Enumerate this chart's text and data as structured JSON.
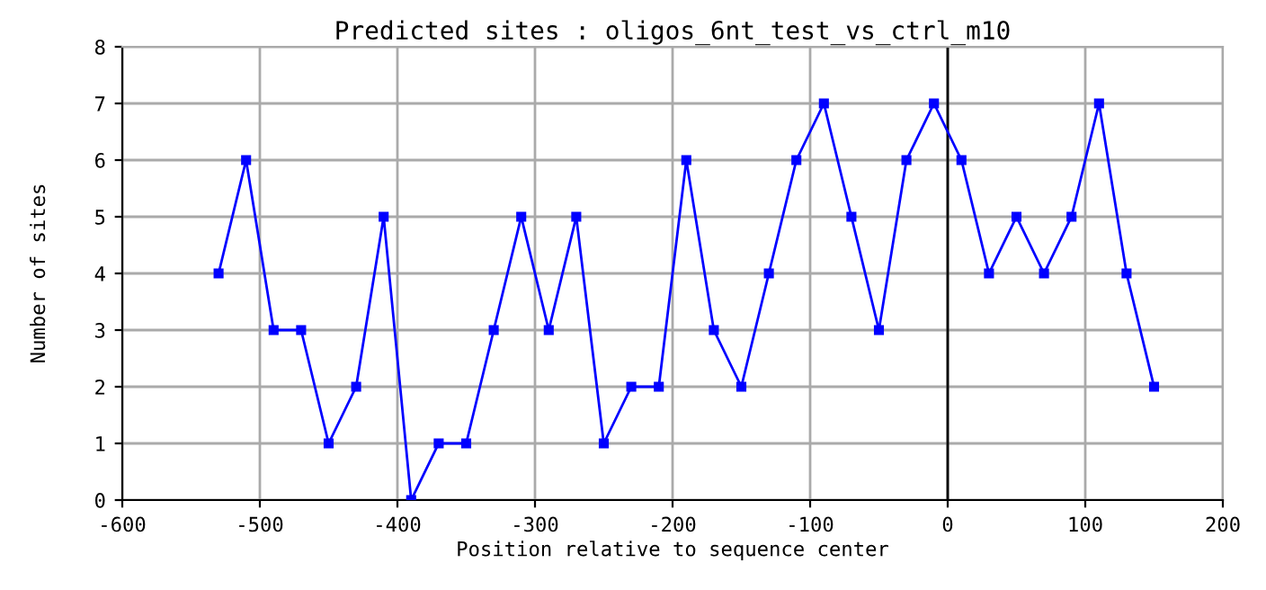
{
  "chart_data": {
    "type": "line",
    "title": "Predicted sites : oligos_6nt_test_vs_ctrl_m10",
    "xlabel": "Position relative to sequence center",
    "ylabel": "Number of sites",
    "x": [
      -530,
      -510,
      -490,
      -470,
      -450,
      -430,
      -410,
      -390,
      -370,
      -350,
      -330,
      -310,
      -290,
      -270,
      -250,
      -230,
      -210,
      -190,
      -170,
      -150,
      -130,
      -110,
      -90,
      -70,
      -50,
      -30,
      -10,
      10,
      30,
      50,
      70,
      90,
      110,
      130,
      150
    ],
    "series": [
      {
        "color": "#0000ff",
        "values": [
          4,
          6,
          3,
          3,
          1,
          2,
          5,
          0,
          1,
          1,
          3,
          5,
          3,
          5,
          1,
          2,
          2,
          6,
          3,
          2,
          4,
          6,
          7,
          5,
          3,
          6,
          7,
          6,
          4,
          5,
          4,
          5,
          7,
          4,
          2
        ]
      }
    ],
    "xlim": [
      -600,
      200
    ],
    "xticks": [
      -600,
      -500,
      -400,
      -300,
      -200,
      -100,
      0,
      100,
      200
    ],
    "ylim": [
      0,
      8
    ],
    "yticks": [
      0,
      1,
      2,
      3,
      4,
      5,
      6,
      7,
      8
    ],
    "ref_lines": [
      {
        "axis": "x",
        "value": 0,
        "color": "#000000"
      }
    ],
    "grid": true,
    "marker": "square",
    "line_style": "solid"
  }
}
